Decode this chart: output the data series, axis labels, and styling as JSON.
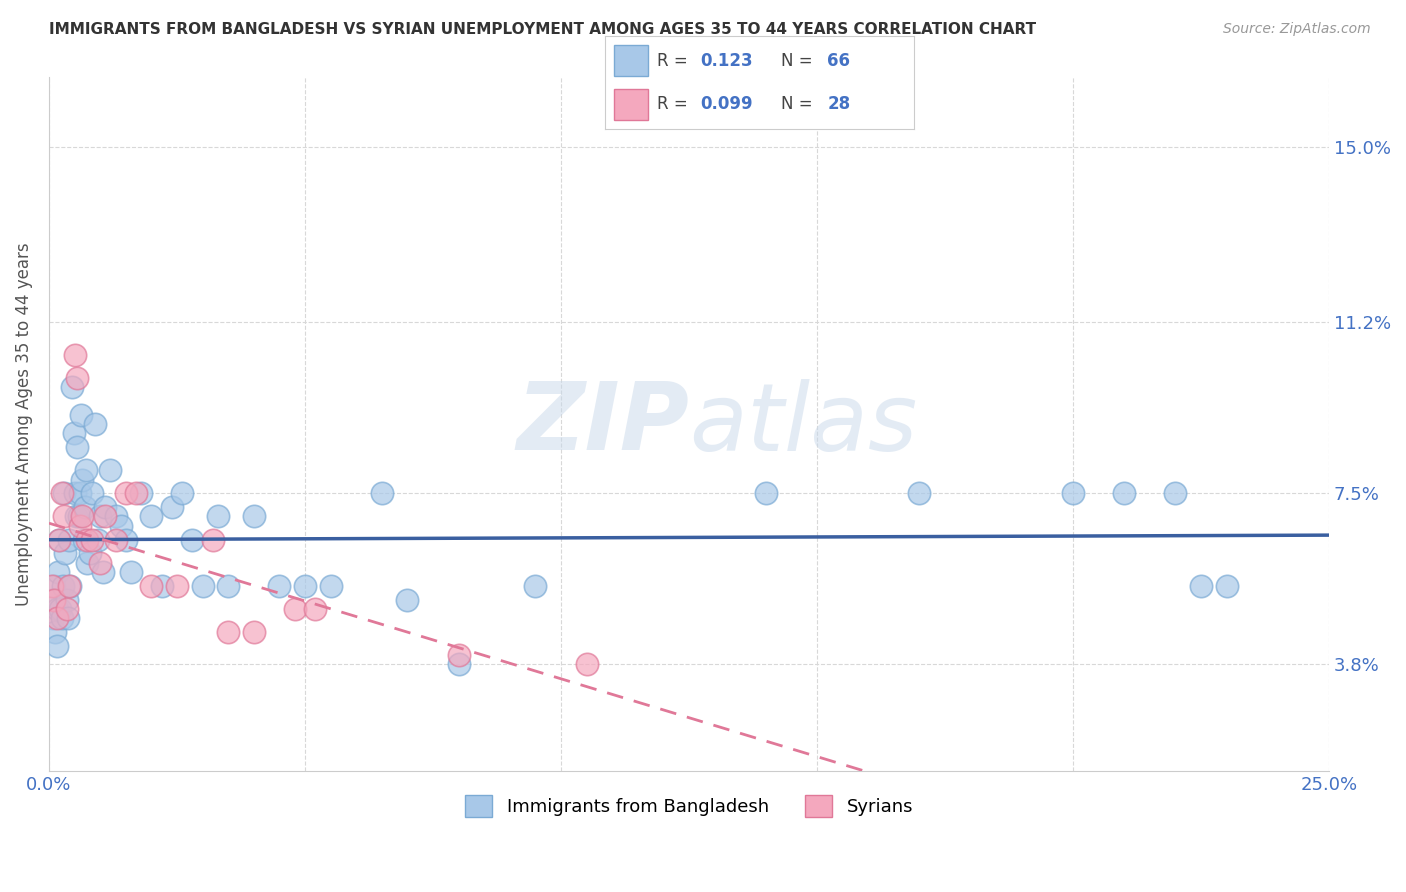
{
  "title": "IMMIGRANTS FROM BANGLADESH VS SYRIAN UNEMPLOYMENT AMONG AGES 35 TO 44 YEARS CORRELATION CHART",
  "source": "Source: ZipAtlas.com",
  "ylabel": "Unemployment Among Ages 35 to 44 years",
  "ytick_labels": [
    "3.8%",
    "7.5%",
    "11.2%",
    "15.0%"
  ],
  "ytick_vals": [
    3.8,
    7.5,
    11.2,
    15.0
  ],
  "xlim": [
    0.0,
    25.0
  ],
  "ylim": [
    1.5,
    16.5
  ],
  "xtick_labels": [
    "0.0%",
    "",
    "",
    "",
    "",
    "25.0%"
  ],
  "xtick_vals": [
    0,
    5,
    10,
    15,
    20,
    25
  ],
  "bangladesh_R": "0.123",
  "bangladesh_N": "66",
  "syrian_R": "0.099",
  "syrian_N": "28",
  "bangladesh_color": "#a8c8e8",
  "syrian_color": "#f4a8be",
  "bangladesh_edge": "#7baad4",
  "syrian_edge": "#e07898",
  "bangladesh_line_color": "#3a5fa0",
  "syrian_line_color": "#e07898",
  "label_color": "#4472c4",
  "title_color": "#333333",
  "source_color": "#999999",
  "grid_color": "#d8d8d8",
  "legend_label_bangladesh": "Immigrants from Bangladesh",
  "legend_label_syrian": "Syrians",
  "bangladesh_x": [
    0.05,
    0.08,
    0.1,
    0.12,
    0.15,
    0.15,
    0.18,
    0.2,
    0.22,
    0.25,
    0.28,
    0.3,
    0.32,
    0.35,
    0.38,
    0.4,
    0.42,
    0.45,
    0.48,
    0.5,
    0.52,
    0.55,
    0.58,
    0.6,
    0.62,
    0.65,
    0.68,
    0.7,
    0.72,
    0.75,
    0.8,
    0.85,
    0.9,
    0.95,
    1.0,
    1.05,
    1.1,
    1.2,
    1.3,
    1.4,
    1.5,
    1.6,
    1.8,
    2.0,
    2.2,
    2.4,
    2.6,
    2.8,
    3.0,
    3.3,
    3.5,
    4.0,
    4.5,
    5.0,
    5.5,
    6.5,
    7.0,
    8.0,
    9.5,
    14.0,
    17.0,
    20.0,
    21.0,
    22.0,
    22.5,
    23.0
  ],
  "bangladesh_y": [
    5.2,
    4.8,
    5.5,
    4.5,
    5.0,
    4.2,
    5.8,
    6.5,
    5.0,
    4.8,
    5.5,
    7.5,
    6.2,
    5.2,
    4.8,
    6.5,
    5.5,
    9.8,
    8.8,
    7.5,
    7.0,
    8.5,
    7.0,
    7.5,
    9.2,
    7.8,
    6.5,
    7.2,
    8.0,
    6.0,
    6.2,
    7.5,
    9.0,
    6.5,
    7.0,
    5.8,
    7.2,
    8.0,
    7.0,
    6.8,
    6.5,
    5.8,
    7.5,
    7.0,
    5.5,
    7.2,
    7.5,
    6.5,
    5.5,
    7.0,
    5.5,
    7.0,
    5.5,
    5.5,
    5.5,
    7.5,
    5.2,
    3.8,
    5.5,
    7.5,
    7.5,
    7.5,
    7.5,
    7.5,
    5.5,
    5.5
  ],
  "syrian_x": [
    0.05,
    0.1,
    0.15,
    0.2,
    0.25,
    0.3,
    0.35,
    0.4,
    0.5,
    0.55,
    0.6,
    0.65,
    0.75,
    0.85,
    1.0,
    1.1,
    1.3,
    1.5,
    1.7,
    2.0,
    2.5,
    3.2,
    3.5,
    4.0,
    4.8,
    5.2,
    8.0,
    10.5
  ],
  "syrian_y": [
    5.5,
    5.2,
    4.8,
    6.5,
    7.5,
    7.0,
    5.0,
    5.5,
    10.5,
    10.0,
    6.8,
    7.0,
    6.5,
    6.5,
    6.0,
    7.0,
    6.5,
    7.5,
    7.5,
    5.5,
    5.5,
    6.5,
    4.5,
    4.5,
    5.0,
    5.0,
    4.0,
    3.8
  ]
}
